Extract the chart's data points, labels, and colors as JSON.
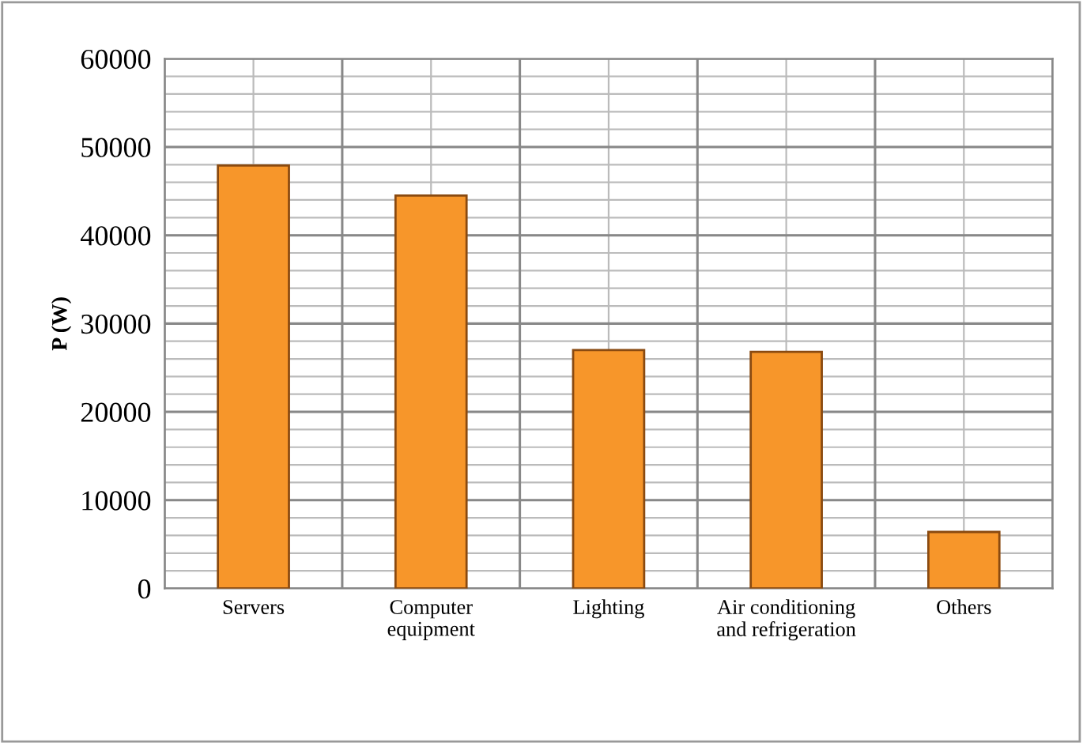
{
  "chart_data": {
    "type": "bar",
    "ylabel": "P (W)",
    "categories": [
      "Servers",
      "Computer\nequipment",
      "Lighting",
      "Air conditioning\nand refrigeration",
      "Others"
    ],
    "values": [
      47900,
      44500,
      27000,
      26800,
      6400
    ],
    "color": "#f7962a",
    "ylim": [
      0,
      60000
    ],
    "yticks": [
      0,
      10000,
      20000,
      30000,
      40000,
      50000,
      60000
    ],
    "grid": true
  }
}
